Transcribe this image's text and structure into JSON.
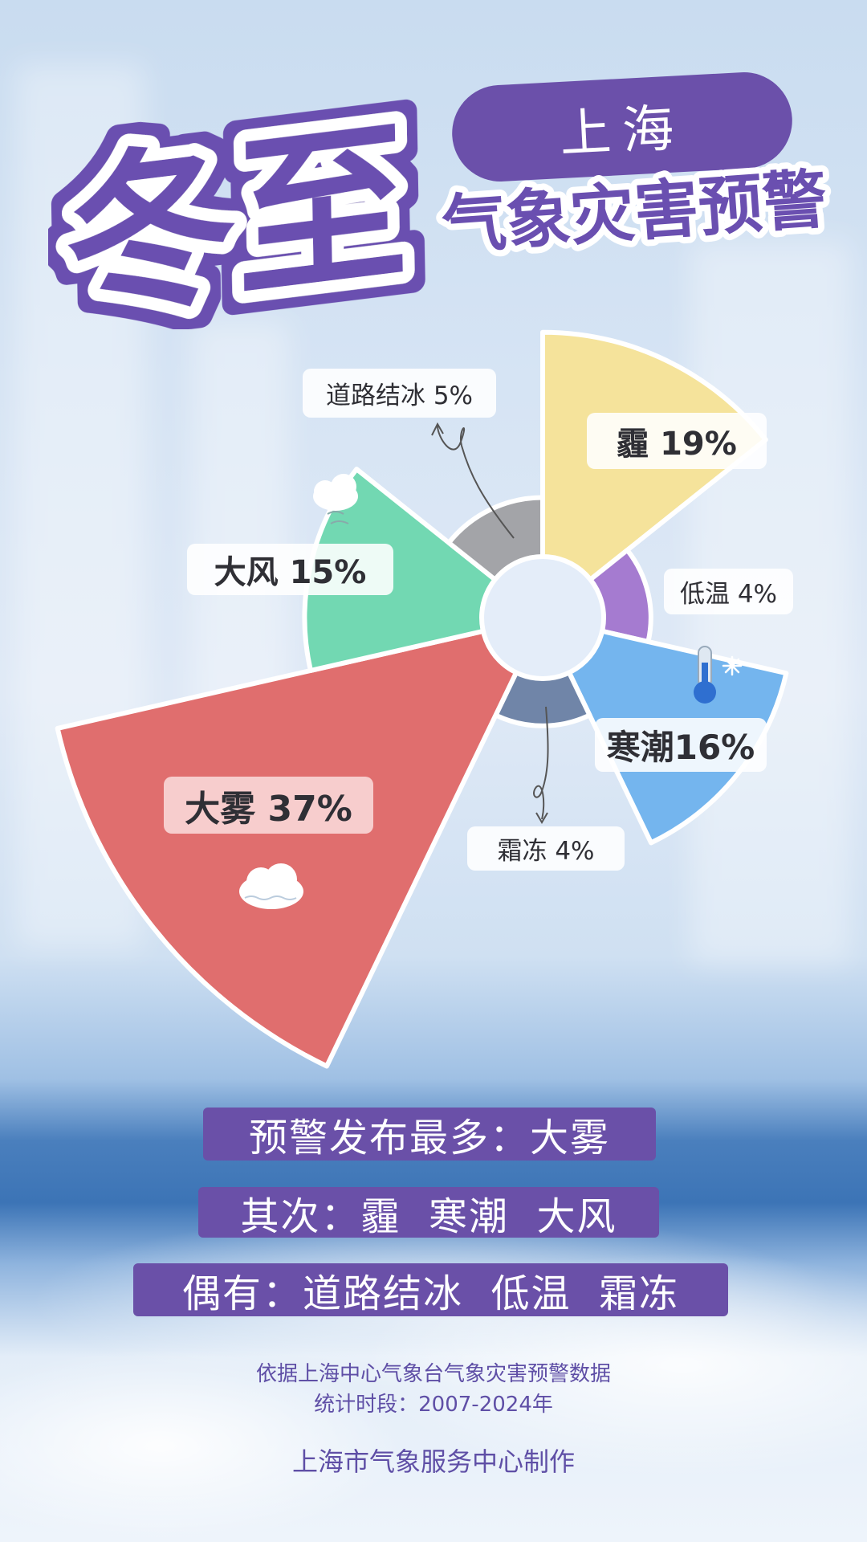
{
  "header": {
    "big_title": "冬至",
    "city": "上海",
    "subtitle": "气象灾害预警"
  },
  "chart_data": {
    "type": "pie",
    "subtype": "nightingale-rose",
    "categories": [
      "霾",
      "低温",
      "寒潮",
      "霜冻",
      "大雾",
      "大风",
      "道路结冰"
    ],
    "values": [
      19,
      4,
      16,
      4,
      37,
      15,
      5
    ],
    "unit": "%",
    "labels": [
      "霾 19%",
      "低温 4%",
      "寒潮16%",
      "霜冻 4%",
      "大雾 37%",
      "大风 15%",
      "道路结冰 5%"
    ],
    "colors": [
      "#f5e39b",
      "#a57bd0",
      "#74b5ee",
      "#7085a8",
      "#e06e6e",
      "#72d8b2",
      "#a3a4a8"
    ],
    "legend": "none"
  },
  "icons": {
    "wind": "cloud-wind-icon",
    "fog": "cloud-moon-fog-icon",
    "cold": "thermometer-snowflake-icon"
  },
  "summary": {
    "line1": "预警发布最多：大雾",
    "line2": "其次：霾  寒潮  大风",
    "line3": "偶有：道路结冰  低温  霜冻"
  },
  "footer": {
    "source": "依据上海中心气象台气象灾害预警数据",
    "period": "统计时段：2007-2024年",
    "producer": "上海市气象服务中心制作"
  }
}
